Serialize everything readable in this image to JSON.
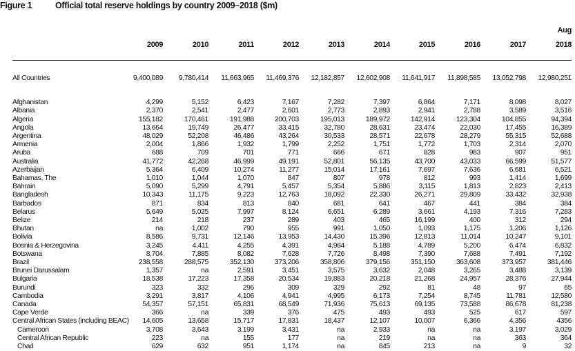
{
  "figure": {
    "label": "Figure 1",
    "title": "Official total reserve holdings by country 2009–2018 ($m)"
  },
  "columns": [
    "2009",
    "2010",
    "2011",
    "2012",
    "2013",
    "2014",
    "2015",
    "2016",
    "2017",
    "2018"
  ],
  "last_column_prefix": "Aug",
  "total": {
    "label": "All Countries",
    "values": [
      "9,400,089",
      "9,780,414",
      "11,663,965",
      "11,469,376",
      "12,182,857",
      "12,602,908",
      "11,641,917",
      "11,898,585",
      "13,052,798",
      "12,980,251"
    ]
  },
  "rows": [
    {
      "label": "Afghanistan",
      "values": [
        "4,299",
        "5,152",
        "6,423",
        "7,167",
        "7,282",
        "7,397",
        "6,864",
        "7,171",
        "8,098",
        "8,027"
      ]
    },
    {
      "label": "Albania",
      "values": [
        "2,370",
        "2,541",
        "2,477",
        "2,601",
        "2,773",
        "2,893",
        "2,941",
        "2,788",
        "3,589",
        "3,516"
      ]
    },
    {
      "label": "Algeria",
      "values": [
        "155,182",
        "170,461",
        "191,988",
        "200,703",
        "195,013",
        "189,972",
        "142,914",
        "123,304",
        "104,855",
        "94,394"
      ]
    },
    {
      "label": "Angola",
      "values": [
        "13,664",
        "19,749",
        "26,477",
        "33,415",
        "32,780",
        "28,631",
        "23,474",
        "22,030",
        "17,455",
        "16,389"
      ]
    },
    {
      "label": "Argentina",
      "values": [
        "48,029",
        "52,208",
        "46,486",
        "43,264",
        "30,533",
        "28,571",
        "22,678",
        "28,279",
        "55,315",
        "52,688"
      ]
    },
    {
      "label": "Armenia",
      "values": [
        "2,004",
        "1,866",
        "1,932",
        "1,799",
        "2,252",
        "1,751",
        "1,772",
        "1,703",
        "2,314",
        "2,070"
      ]
    },
    {
      "label": "Aruba",
      "values": [
        "688",
        "709",
        "701",
        "771",
        "666",
        "671",
        "828",
        "983",
        "907",
        "951"
      ]
    },
    {
      "label": "Australia",
      "values": [
        "41,772",
        "42,268",
        "46,999",
        "49,191",
        "52,801",
        "56,135",
        "43,700",
        "43,033",
        "66,599",
        "51,577"
      ]
    },
    {
      "label": "Azerbaijan",
      "values": [
        "5,364",
        "6,409",
        "10,274",
        "11,277",
        "15,014",
        "17,161",
        "7,697",
        "7,636",
        "6,681",
        "6,521"
      ]
    },
    {
      "label": "Bahamas, The",
      "values": [
        "1,010",
        "1,044",
        "1,070",
        "847",
        "807",
        "978",
        "812",
        "993",
        "1,414",
        "1,699"
      ]
    },
    {
      "label": "Bahrain",
      "values": [
        "5,090",
        "5,299",
        "4,791",
        "5,457",
        "5,354",
        "5,886",
        "3,115",
        "1,813",
        "2,823",
        "2,413"
      ]
    },
    {
      "label": "Bangladesh",
      "values": [
        "10,343",
        "11,175",
        "9,223",
        "12,763",
        "18,092",
        "22,330",
        "26,271",
        "29,809",
        "33,432",
        "32,938"
      ]
    },
    {
      "label": "Barbados",
      "values": [
        "871",
        "834",
        "813",
        "840",
        "681",
        "641",
        "467",
        "441",
        "384",
        "384"
      ]
    },
    {
      "label": "Belarus",
      "values": [
        "5,649",
        "5,025",
        "7,997",
        "8,124",
        "6,651",
        "6,289",
        "3,661",
        "4,193",
        "7,316",
        "7,283"
      ]
    },
    {
      "label": "Belize",
      "values": [
        "214",
        "218",
        "237",
        "289",
        "403",
        "465",
        "16,199",
        "400",
        "312",
        "294"
      ]
    },
    {
      "label": "Bhutan",
      "values": [
        "na",
        "1,002",
        "790",
        "955",
        "991",
        "1,050",
        "1,093",
        "1,175",
        "1,206",
        "1,126"
      ]
    },
    {
      "label": "Bolivia",
      "values": [
        "8,586",
        "9,731",
        "12,146",
        "13,953",
        "14,430",
        "15,396",
        "12,813",
        "11,014",
        "10,247",
        "9,101"
      ]
    },
    {
      "label": "Bosnia & Herzegovina",
      "values": [
        "3,245",
        "4,411",
        "4,255",
        "4,391",
        "4,984",
        "5,188",
        "4,789",
        "5,200",
        "6,474",
        "6,832"
      ]
    },
    {
      "label": "Botswana",
      "values": [
        "8,704",
        "7,885",
        "8,082",
        "7,628",
        "7,726",
        "8,498",
        "7,390",
        "7,688",
        "7,491",
        "7,192"
      ]
    },
    {
      "label": "Brazil",
      "values": [
        "238,558",
        "288,575",
        "352,130",
        "373,206",
        "358,806",
        "379,156",
        "351,150",
        "363,608",
        "373,957",
        "381,446"
      ]
    },
    {
      "label": "Brunei Darussalam",
      "values": [
        "1,357",
        "na",
        "2,591",
        "3,451",
        "3,575",
        "3,632",
        "2,048",
        "3,265",
        "3,488",
        "3,139"
      ]
    },
    {
      "label": "Bulgaria",
      "values": [
        "18,538",
        "17,223",
        "17,358",
        "20,534",
        "19,883",
        "20,218",
        "21,268",
        "24,957",
        "28,376",
        "27,944"
      ]
    },
    {
      "label": "Burundi",
      "values": [
        "323",
        "332",
        "296",
        "309",
        "329",
        "292",
        "81",
        "48",
        "97",
        "65"
      ]
    },
    {
      "label": "Cambodia",
      "values": [
        "3,291",
        "3,817",
        "4,106",
        "4,941",
        "4,995",
        "6,173",
        "7,254",
        "8,745",
        "11,781",
        "12,580"
      ]
    },
    {
      "label": "Canada",
      "values": [
        "54,357",
        "57,151",
        "65,831",
        "68,549",
        "71,936",
        "75,613",
        "69,135",
        "73,588",
        "86,678",
        "81,238"
      ]
    },
    {
      "label": "Cape Verde",
      "values": [
        "366",
        "na",
        "339",
        "376",
        "475",
        "493",
        "493",
        "525",
        "617",
        "597"
      ]
    },
    {
      "label": "Central African States (including BEAC)",
      "values": [
        "14,605",
        "13,658",
        "15,717",
        "17,831",
        "18,437",
        "12,107",
        "10,007",
        "6,366",
        "4,356",
        "4356"
      ]
    },
    {
      "label": "Cameroon",
      "sub": true,
      "values": [
        "3,708",
        "3,643",
        "3,199",
        "3,431",
        "na",
        "2,933",
        "na",
        "na",
        "3,197",
        "3,029"
      ]
    },
    {
      "label": "Central African Republic",
      "sub": true,
      "values": [
        "223",
        "na",
        "155",
        "177",
        "na",
        "219",
        "na",
        "na",
        "363",
        "364"
      ]
    },
    {
      "label": "Chad",
      "sub": true,
      "values": [
        "629",
        "632",
        "951",
        "1,174",
        "na",
        "845",
        "213",
        "na",
        "9",
        "32"
      ]
    }
  ]
}
